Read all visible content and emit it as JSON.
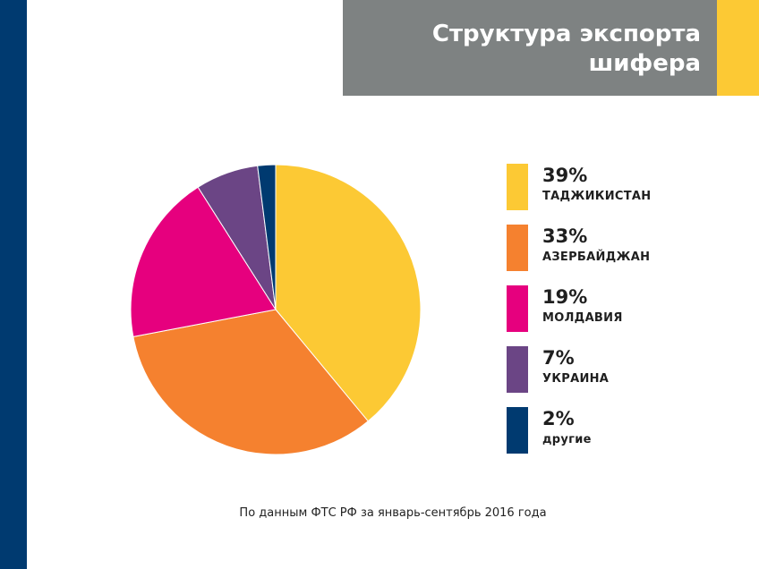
{
  "header": {
    "title": "Структура экспорта\nшифера"
  },
  "colors": {
    "left_bar": "#003a70",
    "title_bg": "#7e8282",
    "title_accent": "#fcc934"
  },
  "chart_data": {
    "type": "pie",
    "slices": [
      {
        "label": "ТАДЖИКИСТАН",
        "value": 39,
        "value_label": "39%",
        "color": "#fcc934"
      },
      {
        "label": "АЗЕРБАЙДЖАН",
        "value": 33,
        "value_label": "33%",
        "color": "#f5812f"
      },
      {
        "label": "МОЛДАВИЯ",
        "value": 19,
        "value_label": "19%",
        "color": "#e6007e"
      },
      {
        "label": "УКРАИНА",
        "value": 7,
        "value_label": "7%",
        "color": "#6b4585"
      },
      {
        "label": "другие",
        "value": 2,
        "value_label": "2%",
        "color": "#003a70"
      }
    ],
    "legend_position": "right"
  },
  "footer": {
    "source": "По данным ФТС РФ за январь-сентябрь 2016 года"
  }
}
